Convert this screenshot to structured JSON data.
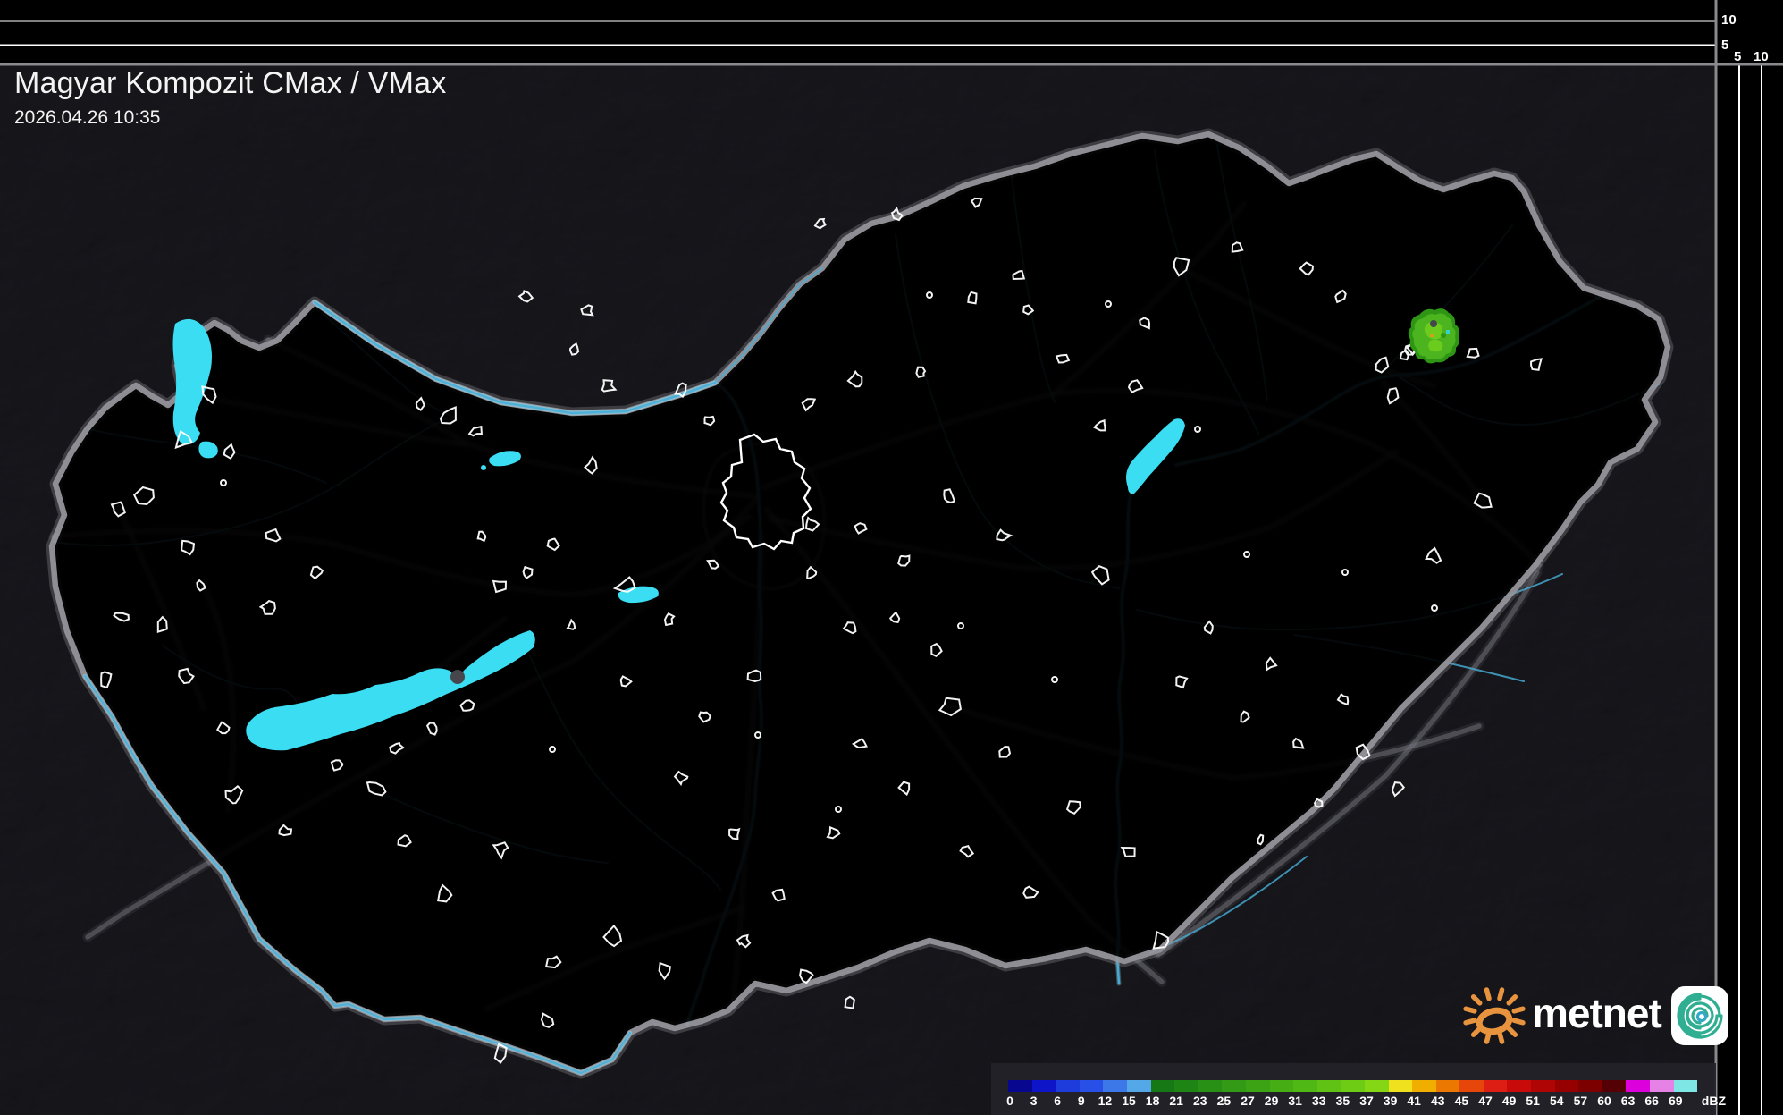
{
  "header": {
    "title": "Magyar Kompozit CMax / VMax",
    "timestamp": "2026.04.26 10:35"
  },
  "profile_frame": {
    "vertical_axis_labels": [
      "10",
      "5"
    ],
    "horizontal_axis_labels": [
      "5",
      "10"
    ]
  },
  "legend": {
    "unit": "dBZ",
    "boundaries": [
      "0",
      "3",
      "6",
      "9",
      "12",
      "15",
      "18",
      "21",
      "23",
      "25",
      "27",
      "29",
      "31",
      "33",
      "35",
      "37",
      "39",
      "41",
      "43",
      "45",
      "47",
      "49",
      "51",
      "54",
      "57",
      "60",
      "63",
      "66",
      "69"
    ],
    "cell_colors": [
      "#07078F",
      "#0E14C8",
      "#1E3CDC",
      "#2850E6",
      "#3C78E8",
      "#55A8E8",
      "#157814",
      "#1E8414",
      "#289014",
      "#329A14",
      "#3CA414",
      "#46AE14",
      "#50B814",
      "#5FC214",
      "#6FCC14",
      "#85D614",
      "#F0E11E",
      "#F0AF00",
      "#EB7800",
      "#E6460A",
      "#DC1E14",
      "#C80A0A",
      "#AF0505",
      "#960000",
      "#7D0000",
      "#550005",
      "#DC00DC",
      "#E682E6",
      "#7FE6E6"
    ]
  },
  "logo": {
    "text": "metnet"
  },
  "map": {
    "echo": {
      "region": "northeast",
      "colors": [
        "#2E9614",
        "#4CB41E",
        "#6CCC1E",
        "#D0A018"
      ]
    }
  },
  "colors": {
    "land": "#46464C",
    "outside_shade": "#0B0B10",
    "border": "#97979D",
    "border_river": "#8CC8DC",
    "river": "#49AFD8",
    "road": "#75757D",
    "lake": "#3ADDF2",
    "settlement": "#FFFFFF",
    "frame_gray": "#8A8A8E",
    "sun_orange": "#E8943F",
    "spiral_teal": "#2FAE92"
  }
}
